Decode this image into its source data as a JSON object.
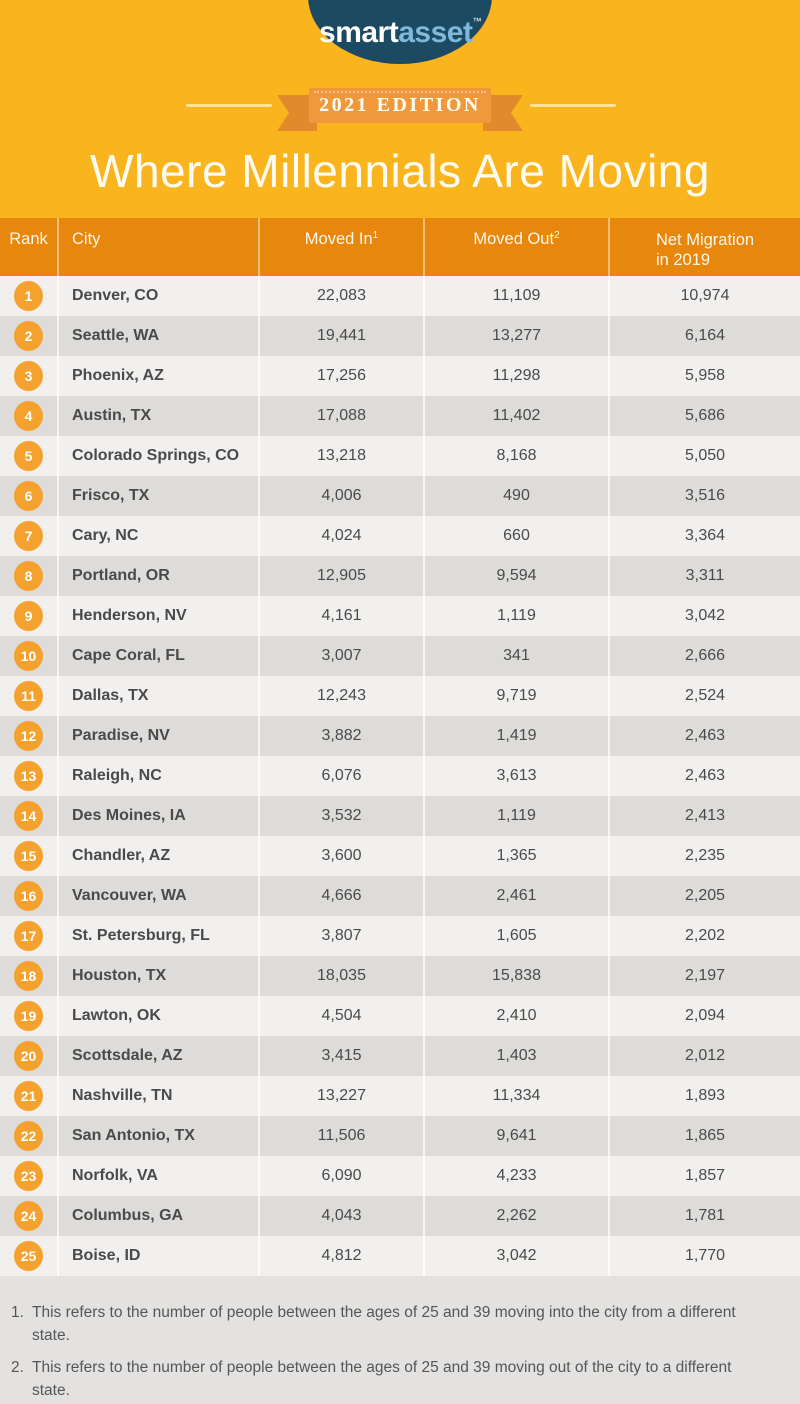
{
  "theme": {
    "background_yellow": "#FAB41E",
    "logo_navy": "#1C4A63",
    "logo_blue": "#7FB8D9",
    "ribbon_orange": "#F0993C",
    "ribbon_tail_orange": "#E18A2C",
    "header_orange": "#E8870E",
    "badge_orange": "#F5A12D",
    "row_light": "#F1F0EF",
    "row_dark": "#DDDCDA",
    "body_text": "#4A4A4A",
    "footer_gray": "#E3E2E1"
  },
  "logo": {
    "brand_part1": "smart",
    "brand_part2": "asset",
    "trademark": "™"
  },
  "ribbon": {
    "text": "2021 EDITION"
  },
  "title": "Where Millennials Are Moving",
  "table": {
    "header": {
      "rank": {
        "label": "Rank"
      },
      "city": {
        "label": "City"
      },
      "moved_in": {
        "label": "Moved In",
        "sup": "1"
      },
      "moved_out": {
        "label": "Moved Out",
        "sup": "2"
      },
      "net_migration": {
        "label": "Net Migration",
        "label2": "in 2019"
      }
    }
  },
  "chart_data": {
    "type": "table",
    "title": "Where Millennials Are Moving",
    "subtitle": "2021 EDITION",
    "columns": [
      "Rank",
      "City",
      "Moved In¹",
      "Moved Out²",
      "Net Migration in 2019"
    ],
    "rows": [
      {
        "rank": "1",
        "city": "Denver, CO",
        "moved_in": "22,083",
        "moved_out": "11,109",
        "net_migration": "10,974"
      },
      {
        "rank": "2",
        "city": "Seattle, WA",
        "moved_in": "19,441",
        "moved_out": "13,277",
        "net_migration": "6,164"
      },
      {
        "rank": "3",
        "city": "Phoenix, AZ",
        "moved_in": "17,256",
        "moved_out": "11,298",
        "net_migration": "5,958"
      },
      {
        "rank": "4",
        "city": "Austin, TX",
        "moved_in": "17,088",
        "moved_out": "11,402",
        "net_migration": "5,686"
      },
      {
        "rank": "5",
        "city": "Colorado Springs, CO",
        "moved_in": "13,218",
        "moved_out": "8,168",
        "net_migration": "5,050"
      },
      {
        "rank": "6",
        "city": "Frisco, TX",
        "moved_in": "4,006",
        "moved_out": "490",
        "net_migration": "3,516"
      },
      {
        "rank": "7",
        "city": "Cary, NC",
        "moved_in": "4,024",
        "moved_out": "660",
        "net_migration": "3,364"
      },
      {
        "rank": "8",
        "city": "Portland, OR",
        "moved_in": "12,905",
        "moved_out": "9,594",
        "net_migration": "3,311"
      },
      {
        "rank": "9",
        "city": "Henderson, NV",
        "moved_in": "4,161",
        "moved_out": "1,119",
        "net_migration": "3,042"
      },
      {
        "rank": "10",
        "city": "Cape Coral, FL",
        "moved_in": "3,007",
        "moved_out": "341",
        "net_migration": "2,666"
      },
      {
        "rank": "11",
        "city": "Dallas, TX",
        "moved_in": "12,243",
        "moved_out": "9,719",
        "net_migration": "2,524"
      },
      {
        "rank": "12",
        "city": "Paradise, NV",
        "moved_in": "3,882",
        "moved_out": "1,419",
        "net_migration": "2,463"
      },
      {
        "rank": "13",
        "city": "Raleigh, NC",
        "moved_in": "6,076",
        "moved_out": "3,613",
        "net_migration": "2,463"
      },
      {
        "rank": "14",
        "city": "Des Moines, IA",
        "moved_in": "3,532",
        "moved_out": "1,119",
        "net_migration": "2,413"
      },
      {
        "rank": "15",
        "city": "Chandler, AZ",
        "moved_in": "3,600",
        "moved_out": "1,365",
        "net_migration": "2,235"
      },
      {
        "rank": "16",
        "city": "Vancouver, WA",
        "moved_in": "4,666",
        "moved_out": "2,461",
        "net_migration": "2,205"
      },
      {
        "rank": "17",
        "city": "St. Petersburg, FL",
        "moved_in": "3,807",
        "moved_out": "1,605",
        "net_migration": "2,202"
      },
      {
        "rank": "18",
        "city": "Houston, TX",
        "moved_in": "18,035",
        "moved_out": "15,838",
        "net_migration": "2,197"
      },
      {
        "rank": "19",
        "city": "Lawton, OK",
        "moved_in": "4,504",
        "moved_out": "2,410",
        "net_migration": "2,094"
      },
      {
        "rank": "20",
        "city": "Scottsdale, AZ",
        "moved_in": "3,415",
        "moved_out": "1,403",
        "net_migration": "2,012"
      },
      {
        "rank": "21",
        "city": "Nashville, TN",
        "moved_in": "13,227",
        "moved_out": "11,334",
        "net_migration": "1,893"
      },
      {
        "rank": "22",
        "city": "San Antonio, TX",
        "moved_in": "11,506",
        "moved_out": "9,641",
        "net_migration": "1,865"
      },
      {
        "rank": "23",
        "city": "Norfolk, VA",
        "moved_in": "6,090",
        "moved_out": "4,233",
        "net_migration": "1,857"
      },
      {
        "rank": "24",
        "city": "Columbus, GA",
        "moved_in": "4,043",
        "moved_out": "2,262",
        "net_migration": "1,781"
      },
      {
        "rank": "25",
        "city": "Boise, ID",
        "moved_in": "4,812",
        "moved_out": "3,042",
        "net_migration": "1,770"
      }
    ]
  },
  "footnotes": [
    {
      "marker": "1.",
      "text": "This refers to the number of people between the ages of 25 and 39 moving into the city from a different state."
    },
    {
      "marker": "2.",
      "text": "This refers to the number of people between the ages of 25 and 39 moving out of the city to a different state."
    }
  ]
}
